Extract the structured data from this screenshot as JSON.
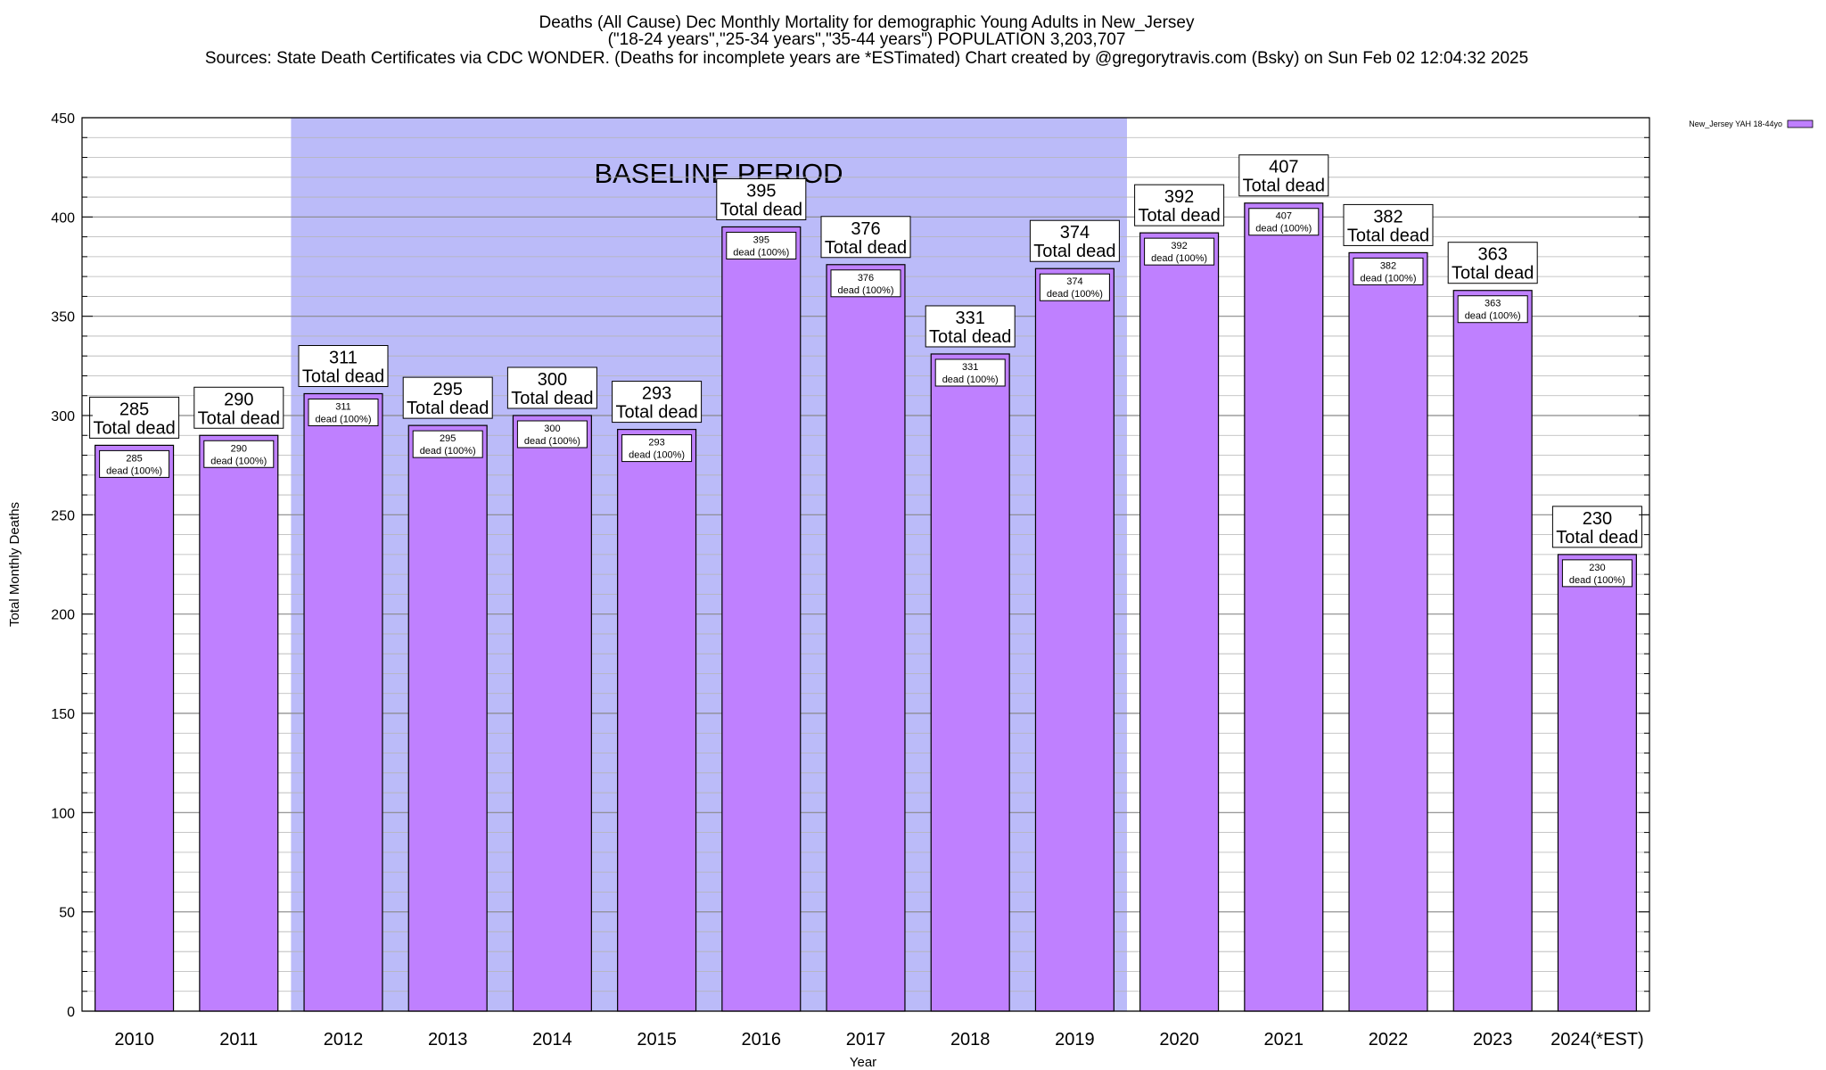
{
  "chart_data": {
    "type": "bar",
    "title_lines": [
      "Deaths (All Cause) Dec Monthly Mortality for demographic Young Adults in New_Jersey",
      "(\"18-24 years\",\"25-34 years\",\"35-44 years\") POPULATION 3,203,707",
      "Sources: State Death Certificates via CDC WONDER. (Deaths for incomplete years are *ESTimated)                Chart created by @gregorytravis.com (Bsky) on Sun Feb 02 12:04:32 2025"
    ],
    "xlabel": "Year",
    "ylabel": "Total Monthly Deaths",
    "ylim": [
      0,
      450
    ],
    "y_ticks": [
      0,
      50,
      100,
      150,
      200,
      250,
      300,
      350,
      400,
      450
    ],
    "categories": [
      "2010",
      "2011",
      "2012",
      "2013",
      "2014",
      "2015",
      "2016",
      "2017",
      "2018",
      "2019",
      "2020",
      "2021",
      "2022",
      "2023",
      "2024(*EST)"
    ],
    "series": [
      {
        "name": "New_Jersey YAH 18-44yo",
        "color": "#bf80ff",
        "values": [
          285,
          290,
          311,
          295,
          300,
          293,
          395,
          376,
          331,
          374,
          392,
          407,
          382,
          363,
          230
        ]
      }
    ],
    "bar_label_suffix": "Total dead",
    "inner_label_text": "dead (100%)",
    "baseline": {
      "label": "BASELINE PERIOD",
      "from": "2012",
      "to": "2019",
      "color": "#bbbbf9"
    },
    "grid": true,
    "legend_position": "top-right"
  }
}
